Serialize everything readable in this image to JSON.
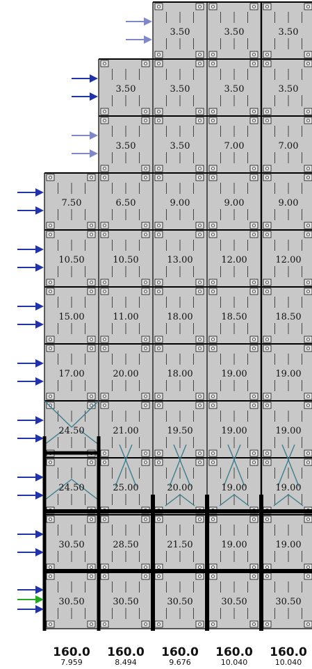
{
  "colors": {
    "panel_fill": "#c8c8c8",
    "grid_line": "#000000",
    "brace": "#3e7c8e",
    "arrow_dark": "#2233aa",
    "arrow_light": "#8088cc",
    "arrow_green": "#22aa22"
  },
  "rows": [
    {
      "x_start": 2,
      "values": [
        "3.50",
        "3.50",
        "3.50"
      ]
    },
    {
      "x_start": 1,
      "values": [
        "3.50",
        "3.50",
        "3.50",
        "3.50"
      ]
    },
    {
      "x_start": 1,
      "values": [
        "3.50",
        "3.50",
        "7.00",
        "7.00"
      ]
    },
    {
      "x_start": 0,
      "values": [
        "7.50",
        "6.50",
        "9.00",
        "9.00",
        "9.00"
      ]
    },
    {
      "x_start": 0,
      "values": [
        "10.50",
        "10.50",
        "13.00",
        "12.00",
        "12.00"
      ]
    },
    {
      "x_start": 0,
      "values": [
        "15.00",
        "11.00",
        "18.00",
        "18.50",
        "18.50"
      ]
    },
    {
      "x_start": 0,
      "values": [
        "17.00",
        "20.00",
        "18.00",
        "19.00",
        "19.00"
      ]
    },
    {
      "x_start": 0,
      "values": [
        "24.50",
        "21.00",
        "19.50",
        "19.00",
        "19.00"
      ]
    },
    {
      "x_start": 0,
      "values": [
        "24.50",
        "25.00",
        "20.00",
        "19.00",
        "19.00"
      ]
    },
    {
      "x_start": 0,
      "values": [
        "30.50",
        "28.50",
        "21.50",
        "19.00",
        "19.00"
      ]
    },
    {
      "x_start": 0,
      "values": [
        "30.50",
        "30.50",
        "30.50",
        "30.50",
        "30.50"
      ]
    }
  ],
  "wind_arrows": [
    [
      "light",
      "light"
    ],
    [
      "dark",
      "dark"
    ],
    [
      "light",
      "light"
    ],
    [
      "dark",
      "dark"
    ],
    [
      "dark",
      "dark"
    ],
    [
      "dark",
      "dark"
    ],
    [
      "dark",
      "dark"
    ],
    [
      "dark",
      "dark"
    ],
    [
      "dark",
      "dark"
    ],
    [
      "dark",
      "dark"
    ],
    [
      "dark",
      "green",
      "dark"
    ]
  ],
  "footer": {
    "main": [
      "160.0",
      "160.0",
      "160.0",
      "160.0",
      "160.0"
    ],
    "sub": [
      "7.959",
      "8.494",
      "9.676",
      "10.040",
      "10.040"
    ]
  }
}
